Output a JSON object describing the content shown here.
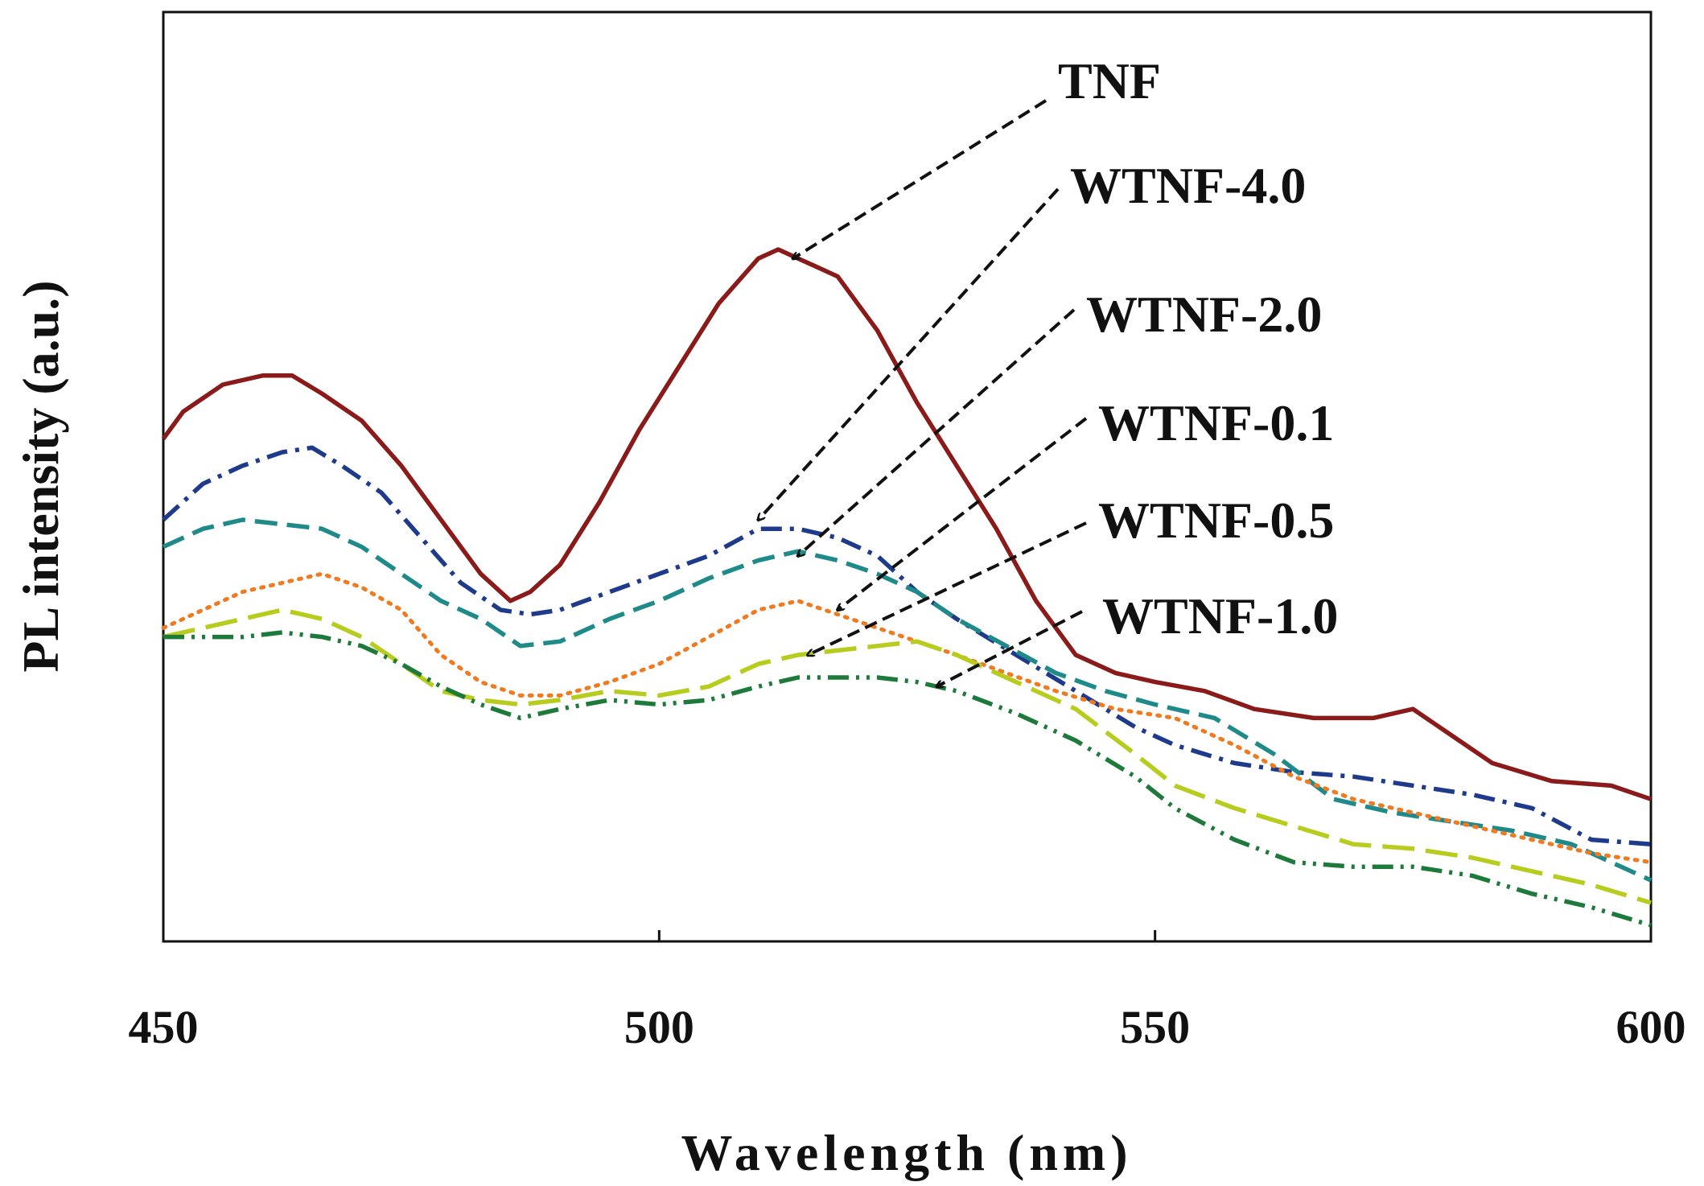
{
  "chart_data": {
    "type": "line",
    "title": "",
    "xlabel": "Wavelength (nm)",
    "ylabel": "PL intensity (a.u.)",
    "xlim": [
      450,
      600
    ],
    "ylim": [
      0,
      100
    ],
    "xticks": [
      450,
      500,
      550,
      600
    ],
    "grid": false,
    "legend": "callout labels with dashed arrows, right side",
    "series": [
      {
        "name": "TNF",
        "color": "#8B1A1A",
        "dash": "solid",
        "x": [
          450,
          452,
          456,
          460,
          463,
          466,
          470,
          474,
          478,
          482,
          485,
          487,
          490,
          494,
          498,
          502,
          506,
          510,
          512,
          514,
          516,
          518,
          522,
          526,
          530,
          534,
          538,
          542,
          546,
          550,
          555,
          560,
          566,
          572,
          576,
          580,
          584,
          590,
          596,
          600
        ],
        "y": [
          54,
          57,
          60,
          61,
          61,
          59,
          56,
          51,
          45,
          39,
          36,
          37,
          40,
          47,
          55,
          62,
          69,
          74,
          75,
          74,
          73,
          72,
          66,
          58,
          51,
          44,
          36,
          30,
          28,
          27,
          26,
          24,
          23,
          23,
          24,
          21,
          18,
          16,
          15.5,
          14
        ]
      },
      {
        "name": "WTNF-4.0",
        "color": "#1E3A8A",
        "dash": "dashdot",
        "x": [
          450,
          454,
          458,
          462,
          465,
          468,
          472,
          476,
          480,
          484,
          487,
          490,
          495,
          500,
          505,
          510,
          514,
          518,
          522,
          526,
          530,
          536,
          542,
          548,
          552,
          558,
          564,
          570,
          576,
          582,
          588,
          594,
          600
        ],
        "y": [
          45,
          49,
          51,
          52.5,
          53,
          51,
          48,
          43,
          38,
          35,
          34.5,
          35,
          37,
          39,
          41,
          44,
          44,
          43,
          41,
          37,
          34,
          30,
          26,
          22,
          20,
          18,
          17,
          16.5,
          15.5,
          14.5,
          13,
          9.5,
          9
        ]
      },
      {
        "name": "WTNF-2.0",
        "color": "#1E8A8A",
        "dash": "dash",
        "x": [
          450,
          454,
          458,
          462,
          466,
          470,
          474,
          478,
          482,
          486,
          490,
          495,
          500,
          505,
          510,
          514,
          518,
          522,
          526,
          530,
          535,
          540,
          545,
          550,
          556,
          562,
          568,
          574,
          580,
          586,
          592,
          596,
          600
        ],
        "y": [
          42,
          44,
          45,
          44.5,
          44,
          42,
          39,
          36,
          34,
          31,
          31.5,
          34,
          36,
          38.5,
          40.5,
          41.5,
          40.5,
          39,
          37,
          34,
          31,
          28,
          26,
          24.5,
          23,
          19,
          14,
          12.5,
          11.5,
          10.5,
          9,
          7,
          5
        ]
      },
      {
        "name": "WTNF-0.1",
        "color": "#F07A20",
        "dash": "dot",
        "x": [
          450,
          454,
          458,
          462,
          466,
          470,
          474,
          478,
          482,
          486,
          490,
          495,
          500,
          505,
          510,
          514,
          518,
          522,
          526,
          530,
          535,
          540,
          546,
          552,
          558,
          564,
          570,
          576,
          582,
          588,
          594,
          600
        ],
        "y": [
          33,
          35,
          37,
          38,
          39,
          37.5,
          35,
          30,
          27,
          25.5,
          25.5,
          27,
          29,
          32,
          35,
          36,
          34.5,
          33,
          31.5,
          30,
          28,
          26,
          24,
          23,
          20,
          16.5,
          14,
          12.5,
          11,
          9.5,
          8,
          7
        ]
      },
      {
        "name": "WTNF-0.5",
        "color": "#B8CC1E",
        "dash": "longdash",
        "x": [
          450,
          454,
          458,
          462,
          466,
          470,
          474,
          478,
          482,
          486,
          490,
          495,
          500,
          505,
          510,
          514,
          518,
          522,
          526,
          530,
          536,
          542,
          548,
          552,
          558,
          564,
          570,
          576,
          582,
          588,
          594,
          600
        ],
        "y": [
          32,
          33,
          34,
          35,
          34,
          32,
          29,
          26,
          25,
          24.5,
          25,
          26,
          25.5,
          26.5,
          29,
          30,
          30.5,
          31,
          31.5,
          30,
          27,
          24,
          19,
          15.5,
          13,
          11,
          9,
          8.5,
          7.5,
          6,
          4.5,
          2.5
        ]
      },
      {
        "name": "WTNF-1.0",
        "color": "#1E7A3A",
        "dash": "dashdotdot",
        "x": [
          450,
          454,
          458,
          462,
          466,
          470,
          474,
          478,
          482,
          486,
          490,
          495,
          500,
          505,
          510,
          514,
          518,
          522,
          526,
          530,
          536,
          542,
          548,
          552,
          558,
          564,
          570,
          576,
          582,
          588,
          594,
          600
        ],
        "y": [
          32,
          32,
          32,
          32.5,
          32,
          31,
          29,
          26.5,
          24.5,
          23,
          24,
          25,
          24.5,
          25,
          26.5,
          27.5,
          27.5,
          27.5,
          27,
          26,
          23.5,
          20.5,
          16.5,
          13,
          9.5,
          7,
          6.5,
          6.5,
          5.5,
          3.5,
          2,
          0
        ]
      }
    ],
    "annotations": [
      {
        "text": "TNF",
        "series": "TNF",
        "point": [
          513.5,
          74
        ]
      },
      {
        "text": "WTNF-4.0",
        "series": "WTNF-4.0",
        "point": [
          510,
          45
        ]
      },
      {
        "text": "WTNF-2.0",
        "series": "WTNF-2.0",
        "point": [
          514,
          41
        ]
      },
      {
        "text": "WTNF-0.1",
        "series": "WTNF-0.1",
        "point": [
          518,
          35
        ]
      },
      {
        "text": "WTNF-0.5",
        "series": "WTNF-0.5",
        "point": [
          515,
          30
        ]
      },
      {
        "text": "WTNF-1.0",
        "series": "WTNF-1.0",
        "point": [
          528,
          26.5
        ]
      }
    ]
  }
}
